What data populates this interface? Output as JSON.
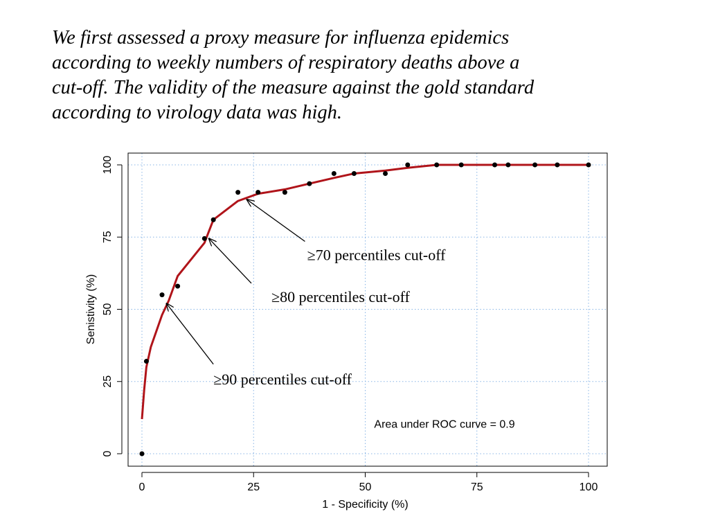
{
  "slide": {
    "intro_text": "We first assessed a proxy measure for influenza epidemics\naccording to weekly numbers of respiratory deaths above a\ncut-off. The validity of the measure against the gold standard\naccording to virology data was high."
  },
  "chart_data": {
    "type": "scatter",
    "title": "",
    "xlabel": "1 - Specificity (%)",
    "ylabel": "Senistivity (%)",
    "xlim": [
      0,
      100
    ],
    "ylim": [
      0,
      100
    ],
    "xticks": [
      "0",
      "25",
      "50",
      "75",
      "100"
    ],
    "yticks": [
      "0",
      "25",
      "50",
      "75",
      "100"
    ],
    "grid": true,
    "grid_color": "#87b4e6",
    "points": {
      "color": "#000000",
      "x": [
        0,
        1,
        4.5,
        8,
        14,
        16,
        21.5,
        26,
        32,
        37.5,
        43,
        47.5,
        54.5,
        59.5,
        66,
        71.5,
        79,
        82,
        88,
        93,
        100
      ],
      "y": [
        0,
        32,
        55,
        58,
        74.5,
        81,
        90.5,
        90.5,
        90.5,
        93.5,
        97,
        97,
        97,
        100,
        100,
        100,
        100,
        100,
        100,
        100,
        100
      ]
    },
    "curve": {
      "color": "#b0141a",
      "x": [
        0,
        0.5,
        1,
        2,
        4.5,
        6,
        8,
        14,
        16,
        21.5,
        26,
        32,
        37.5,
        43,
        47.5,
        54.5,
        59.5,
        66,
        71.5,
        79,
        82,
        88,
        93,
        100
      ],
      "y": [
        12,
        22,
        30,
        37,
        48,
        53,
        61.5,
        73,
        81,
        87.5,
        90,
        91.5,
        93.5,
        95.5,
        97,
        98,
        99,
        100,
        100,
        100,
        100,
        100,
        100,
        100
      ]
    },
    "annotations": [
      {
        "text": "≥70 percentiles cut-off",
        "label_at": [
          37,
          67
        ],
        "arrow_from": [
          36.5,
          73.5
        ],
        "arrow_to": [
          23.5,
          88
        ]
      },
      {
        "text": "≥80 percentiles cut-off",
        "label_at": [
          29,
          52.5
        ],
        "arrow_from": [
          24.5,
          59
        ],
        "arrow_to": [
          15,
          74.5
        ]
      },
      {
        "text": "≥90 percentiles cut-off",
        "label_at": [
          16,
          24
        ],
        "arrow_from": [
          16,
          31
        ],
        "arrow_to": [
          5.5,
          52
        ]
      }
    ],
    "auc_text": "Area under ROC curve = 0.9",
    "auc_at": [
      52,
      9
    ]
  }
}
